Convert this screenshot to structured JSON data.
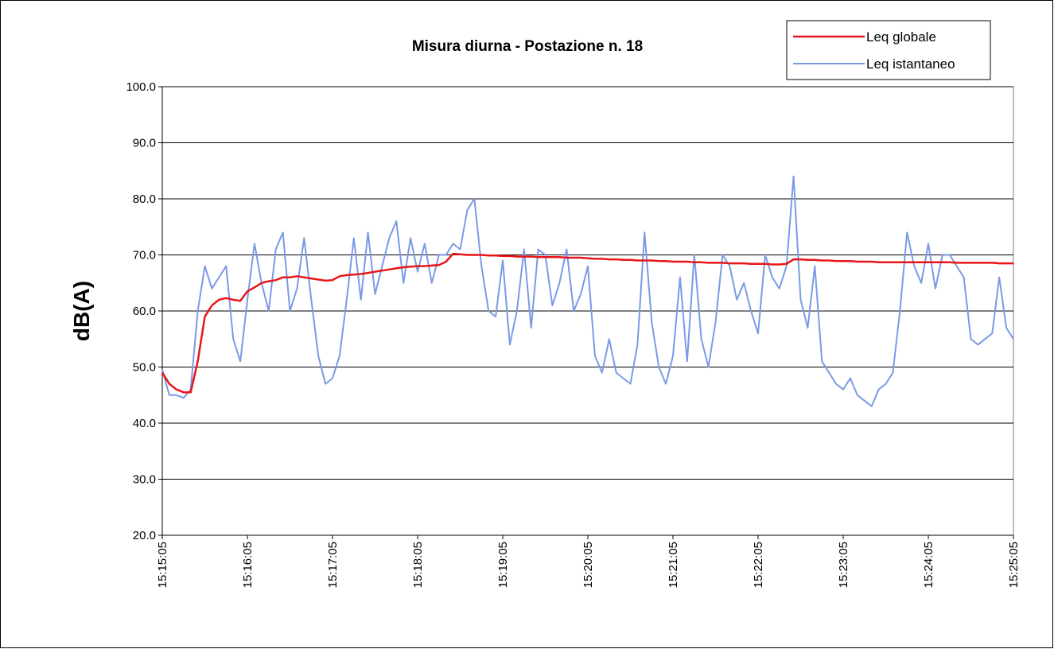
{
  "chart_data": {
    "type": "line",
    "title": "Misura diurna - Postazione n. 18",
    "y_label": "dB(A)",
    "categories": [
      "15:15:05",
      null,
      null,
      null,
      null,
      null,
      null,
      null,
      null,
      null,
      null,
      null,
      "15:16:05",
      null,
      null,
      null,
      null,
      null,
      null,
      null,
      null,
      null,
      null,
      null,
      "15:17:05",
      null,
      null,
      null,
      null,
      null,
      null,
      null,
      null,
      null,
      null,
      null,
      "15:18:05",
      null,
      null,
      null,
      null,
      null,
      null,
      null,
      null,
      null,
      null,
      null,
      "15:19:05",
      null,
      null,
      null,
      null,
      null,
      null,
      null,
      null,
      null,
      null,
      null,
      "15:20:05",
      null,
      null,
      null,
      null,
      null,
      null,
      null,
      null,
      null,
      null,
      null,
      "15:21:05",
      null,
      null,
      null,
      null,
      null,
      null,
      null,
      null,
      null,
      null,
      null,
      "15:22:05",
      null,
      null,
      null,
      null,
      null,
      null,
      null,
      null,
      null,
      null,
      null,
      "15:23:05",
      null,
      null,
      null,
      null,
      null,
      null,
      null,
      null,
      null,
      null,
      null,
      "15:24:05",
      null,
      null,
      null,
      null,
      null,
      null,
      null,
      null,
      null,
      null,
      null,
      "15:25:05"
    ],
    "series": [
      {
        "name": "Leq globale",
        "color": "#e8161a",
        "values": [
          49,
          47,
          46,
          45.5,
          45.5,
          51,
          59,
          61,
          62,
          62.3,
          62,
          61.8,
          63.5,
          64.2,
          65,
          65.3,
          65.5,
          66,
          66,
          66.2,
          66,
          65.8,
          65.6,
          65.4,
          65.5,
          66.2,
          66.4,
          66.5,
          66.6,
          66.8,
          67,
          67.2,
          67.4,
          67.6,
          67.8,
          67.9,
          68,
          68,
          68.1,
          68.2,
          68.8,
          70.2,
          70.1,
          70,
          70,
          70,
          69.9,
          69.9,
          69.8,
          69.8,
          69.7,
          69.7,
          69.7,
          69.6,
          69.6,
          69.6,
          69.6,
          69.5,
          69.5,
          69.5,
          69.4,
          69.3,
          69.3,
          69.2,
          69.2,
          69.1,
          69.1,
          69.0,
          69.0,
          69.0,
          68.9,
          68.9,
          68.8,
          68.8,
          68.8,
          68.7,
          68.7,
          68.6,
          68.6,
          68.6,
          68.5,
          68.5,
          68.5,
          68.4,
          68.4,
          68.4,
          68.3,
          68.3,
          68.4,
          69.2,
          69.2,
          69.1,
          69.1,
          69.0,
          69.0,
          68.9,
          68.9,
          68.9,
          68.8,
          68.8,
          68.8,
          68.7,
          68.7,
          68.7,
          68.7,
          68.7,
          68.7,
          68.7,
          68.7,
          68.7,
          68.7,
          68.7,
          68.6,
          68.6,
          68.6,
          68.6,
          68.6,
          68.6,
          68.5,
          68.5,
          68.5
        ]
      },
      {
        "name": "Leq istantaneo",
        "color": "#7a9ae6",
        "values": [
          49.5,
          45,
          45,
          44.5,
          46,
          60,
          68,
          64,
          66,
          68,
          55,
          51,
          62,
          72,
          65,
          60,
          71,
          74,
          60,
          64,
          73,
          62,
          52,
          47,
          48,
          52,
          62,
          73,
          62,
          74,
          63,
          68,
          73,
          76,
          65,
          73,
          67,
          72,
          65,
          70,
          70,
          72,
          71,
          78,
          80,
          68,
          60,
          59,
          69,
          54,
          60,
          71,
          57,
          71,
          70,
          61,
          65,
          71,
          60,
          63,
          68,
          52,
          49,
          55,
          49,
          48,
          47,
          54,
          74,
          58,
          50,
          47,
          52,
          66,
          51,
          70,
          55,
          50,
          58,
          70,
          68,
          62,
          65,
          60,
          56,
          70,
          66,
          64,
          68,
          84,
          62,
          57,
          68,
          51,
          49,
          47,
          46,
          48,
          45,
          44,
          43,
          46,
          47,
          49,
          60,
          74,
          68,
          65,
          72,
          64,
          70,
          70,
          68,
          66,
          55,
          54,
          55,
          56,
          66,
          57,
          55
        ]
      }
    ],
    "ylim": [
      20,
      100
    ],
    "yticks": [
      {
        "value": 20,
        "label": "20.0"
      },
      {
        "value": 30,
        "label": "30.0"
      },
      {
        "value": 40,
        "label": "40.0"
      },
      {
        "value": 50,
        "label": "50.0"
      },
      {
        "value": 60,
        "label": "60.0"
      },
      {
        "value": 70,
        "label": "70.0"
      },
      {
        "value": 80,
        "label": "80.0"
      },
      {
        "value": 90,
        "label": "90.0"
      },
      {
        "value": 100,
        "label": "100.0"
      }
    ],
    "grid": true,
    "legend": "top-right"
  }
}
